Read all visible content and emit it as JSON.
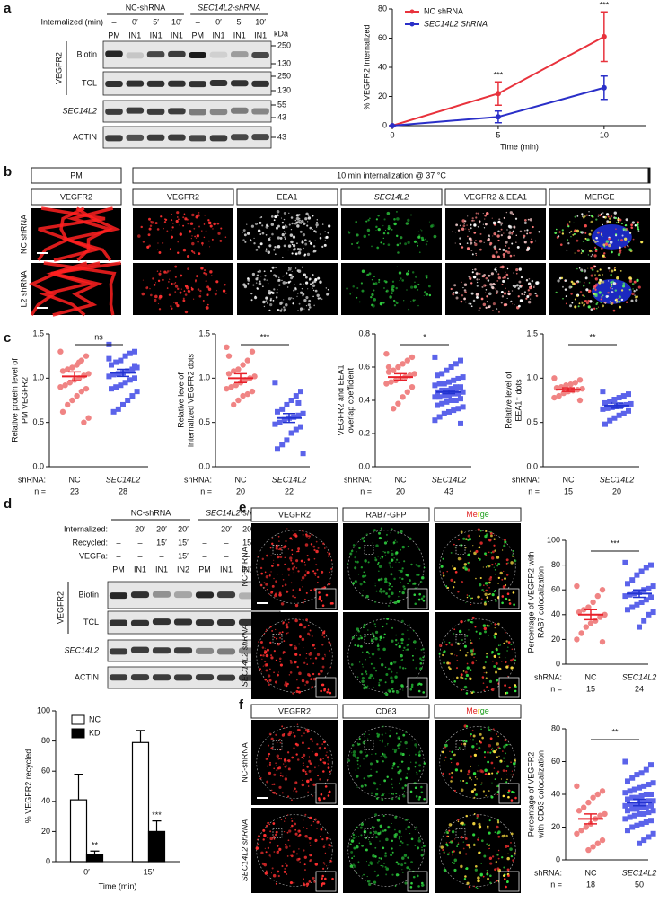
{
  "panel_letters": [
    "a",
    "b",
    "c",
    "d",
    "e",
    "f"
  ],
  "blot_a": {
    "groups": [
      "NC-shRNA",
      "SEC14L2-shRNA"
    ],
    "conditions": [
      {
        "label": "Internalized (min)",
        "values": [
          "–",
          "0′",
          "5′",
          "10′",
          "–",
          "0′",
          "5′",
          "10′"
        ]
      }
    ],
    "lanes": [
      "PM",
      "IN1",
      "IN1",
      "IN1",
      "PM",
      "IN1",
      "IN1",
      "IN1"
    ],
    "group_label": "VEGFR2",
    "unit": "kDa",
    "rows": [
      {
        "label": "Biotin",
        "markers": [
          "250",
          "130"
        ]
      },
      {
        "label": "TCL",
        "markers": [
          "250",
          "130"
        ]
      },
      {
        "label": "SEC14L2",
        "markers": [
          "55",
          "43"
        ]
      },
      {
        "label": "ACTIN",
        "markers": [
          "43"
        ]
      }
    ]
  },
  "panel_b": {
    "pm_header": "PM",
    "internalization_header": "10 min internalization @ 37 °C",
    "columns": [
      "VEGFR2",
      "VEGFR2",
      "EEA1",
      "SEC14L2",
      "VEGFR2 & EEA1",
      "MERGE"
    ],
    "rows": [
      "NC shRNA",
      "L2 shRNA"
    ]
  },
  "blot_d": {
    "groups": [
      "NC-shRNA",
      "SEC14L2-shRNA"
    ],
    "conditions": [
      {
        "label": "Internalized:",
        "values": [
          "–",
          "20′",
          "20′",
          "20′",
          "–",
          "20′",
          "20′",
          "20′"
        ]
      },
      {
        "label": "Recycled:",
        "values": [
          "–",
          "–",
          "15′",
          "15′",
          "–",
          "–",
          "15′",
          "15′"
        ]
      },
      {
        "label": "VEGFa:",
        "values": [
          "–",
          "–",
          "–",
          "15′",
          "–",
          "–",
          "–",
          "15′"
        ]
      }
    ],
    "lanes": [
      "PM",
      "IN1",
      "IN1",
      "IN2",
      "PM",
      "IN1",
      "IN1",
      "IN2"
    ],
    "group_label": "VEGFR2",
    "unit": "kDa",
    "rows": [
      {
        "label": "Biotin",
        "markers": [
          "250",
          "130"
        ]
      },
      {
        "label": "TCL",
        "markers": [
          "250",
          "130"
        ]
      },
      {
        "label": "SEC14L2",
        "markers": [
          "55",
          "43"
        ]
      },
      {
        "label": "ACTIN",
        "markers": [
          "43"
        ]
      }
    ]
  },
  "panel_e": {
    "columns": [
      "VEGFR2",
      "RAB7-GFP",
      "Merge"
    ],
    "rows": [
      "NC-shRNA",
      "SEC14L2 shRNA"
    ]
  },
  "panel_f": {
    "columns": [
      "VEGFR2",
      "CD63",
      "Merge"
    ],
    "rows": [
      "NC-shRNA",
      "SEC14L2 shRNA"
    ]
  },
  "chart_data": [
    {
      "type": "line",
      "x": [
        0,
        5,
        10
      ],
      "xlim": [
        0,
        12
      ],
      "xticks": [
        0,
        5,
        10
      ],
      "ylim": [
        0,
        80
      ],
      "yticks": [
        0,
        20,
        40,
        60,
        80
      ],
      "xlabel": "Time (min)",
      "ylabel": "% VEGFR2 internalized",
      "series": [
        {
          "name": "NC shRNA",
          "color": "#e8323c",
          "values": [
            0,
            22,
            61
          ],
          "errors": [
            0,
            8,
            17
          ]
        },
        {
          "name": "SEC14L2 ShRNA",
          "color": "#2a2fc8",
          "values": [
            0,
            6,
            26
          ],
          "errors": [
            0,
            4,
            8
          ]
        }
      ],
      "annotations": [
        {
          "x": 5,
          "text": "***"
        },
        {
          "x": 10,
          "text": "***"
        }
      ]
    },
    {
      "type": "strip",
      "ylabel": [
        "Relative protein level of",
        "PM VEGFR2"
      ],
      "xlabel": "shRNA:",
      "n_label": "n =",
      "categories": [
        "NC",
        "SEC14L2"
      ],
      "n": [
        23,
        28
      ],
      "ylim": [
        0,
        1.5
      ],
      "yticks": [
        {
          "value": 0,
          "label": "0.0"
        },
        0.5,
        {
          "value": 1,
          "label": "1.0"
        },
        1.5
      ],
      "significance": "ns",
      "groups": [
        {
          "color": "#f08484",
          "mean_color": "#e8202a",
          "values": [
            1.3,
            1.25,
            1.2,
            1.15,
            1.12,
            1.1,
            1.08,
            1.05,
            1.03,
            1.0,
            0.98,
            0.95,
            0.92,
            0.9,
            0.88,
            0.85,
            0.8,
            0.75,
            0.7,
            0.62,
            0.55,
            0.5,
            1.18
          ],
          "mean": 1.02,
          "error": 0.05
        },
        {
          "color": "#5b63ea",
          "mean_color": "#2233d0",
          "values": [
            1.38,
            1.3,
            1.28,
            1.25,
            1.2,
            1.18,
            1.15,
            1.12,
            1.1,
            1.08,
            1.06,
            1.05,
            1.04,
            1.02,
            1.0,
            0.98,
            0.95,
            0.92,
            0.9,
            0.88,
            0.85,
            0.8,
            0.75,
            0.7,
            0.65,
            0.62,
            1.22,
            1.14
          ],
          "mean": 1.06,
          "error": 0.04
        }
      ]
    },
    {
      "type": "strip",
      "ylabel": [
        "Relative leve of",
        "internalized VEGFR2 dots"
      ],
      "xlabel": "shRNA:",
      "n_label": "n =",
      "categories": [
        "NC",
        "SEC14L2"
      ],
      "n": [
        20,
        22
      ],
      "ylim": [
        0,
        1.5
      ],
      "yticks": [
        {
          "value": 0,
          "label": "0.0"
        },
        0.5,
        {
          "value": 1,
          "label": "1.0"
        },
        1.5
      ],
      "significance": "***",
      "groups": [
        {
          "color": "#f08484",
          "mean_color": "#e8202a",
          "values": [
            1.35,
            1.3,
            1.2,
            1.15,
            1.1,
            1.08,
            1.05,
            1.02,
            1.0,
            0.98,
            0.95,
            0.92,
            0.9,
            0.88,
            0.85,
            0.82,
            0.8,
            0.75,
            0.7,
            1.25
          ],
          "mean": 1.0,
          "error": 0.05
        },
        {
          "color": "#5b63ea",
          "mean_color": "#2233d0",
          "values": [
            0.95,
            0.85,
            0.8,
            0.75,
            0.7,
            0.65,
            0.62,
            0.6,
            0.58,
            0.56,
            0.55,
            0.53,
            0.5,
            0.48,
            0.45,
            0.42,
            0.38,
            0.3,
            0.25,
            0.2,
            0.15,
            0.72
          ],
          "mean": 0.55,
          "error": 0.05
        }
      ]
    },
    {
      "type": "strip",
      "ylabel": [
        "VEGFR2 and EEA1",
        "overlap coefficient"
      ],
      "xlabel": "shRNA:",
      "n_label": "n =",
      "categories": [
        "NC",
        "SEC14L2"
      ],
      "n": [
        20,
        43
      ],
      "ylim": [
        0,
        0.8
      ],
      "yticks": [
        {
          "value": 0,
          "label": "0.0"
        },
        0.2,
        0.4,
        0.6,
        0.8
      ],
      "significance": "*",
      "groups": [
        {
          "color": "#f08484",
          "mean_color": "#e8202a",
          "values": [
            0.68,
            0.66,
            0.64,
            0.62,
            0.6,
            0.58,
            0.57,
            0.56,
            0.55,
            0.54,
            0.53,
            0.52,
            0.51,
            0.5,
            0.48,
            0.45,
            0.42,
            0.38,
            0.35,
            0.6
          ],
          "mean": 0.54,
          "error": 0.02
        },
        {
          "color": "#5b63ea",
          "mean_color": "#2233d0",
          "values": [
            0.66,
            0.64,
            0.62,
            0.6,
            0.58,
            0.56,
            0.55,
            0.54,
            0.53,
            0.52,
            0.51,
            0.5,
            0.5,
            0.49,
            0.48,
            0.48,
            0.47,
            0.46,
            0.46,
            0.45,
            0.45,
            0.44,
            0.44,
            0.43,
            0.43,
            0.42,
            0.42,
            0.41,
            0.4,
            0.4,
            0.39,
            0.38,
            0.37,
            0.36,
            0.35,
            0.34,
            0.33,
            0.32,
            0.3,
            0.28,
            0.26,
            0.47,
            0.44
          ],
          "mean": 0.45,
          "error": 0.01
        }
      ]
    },
    {
      "type": "strip",
      "ylabel": [
        "Relative level of",
        "EEA1⁺ dots"
      ],
      "xlabel": "shRNA:",
      "n_label": "n =",
      "categories": [
        "NC",
        "SEC14L2"
      ],
      "n": [
        15,
        20
      ],
      "ylim": [
        0,
        1.5
      ],
      "yticks": [
        {
          "value": 0,
          "label": "0.0"
        },
        0.5,
        {
          "value": 1,
          "label": "1.0"
        },
        1.5
      ],
      "significance": "**",
      "groups": [
        {
          "color": "#f08484",
          "mean_color": "#e8202a",
          "values": [
            1.0,
            0.98,
            0.95,
            0.93,
            0.92,
            0.9,
            0.89,
            0.88,
            0.87,
            0.86,
            0.85,
            0.83,
            0.8,
            0.78,
            0.75
          ],
          "mean": 0.87,
          "error": 0.02
        },
        {
          "color": "#5b63ea",
          "mean_color": "#2233d0",
          "values": [
            0.85,
            0.82,
            0.8,
            0.78,
            0.76,
            0.74,
            0.72,
            0.71,
            0.7,
            0.69,
            0.68,
            0.67,
            0.66,
            0.65,
            0.63,
            0.6,
            0.58,
            0.55,
            0.52,
            0.48
          ],
          "mean": 0.69,
          "error": 0.03
        }
      ]
    },
    {
      "type": "bar",
      "categories": [
        "0′",
        "15′"
      ],
      "xlabel": "Time (min)",
      "ylabel": "% VEGFR2 recycled",
      "ylim": [
        0,
        100
      ],
      "yticks": [
        0,
        20,
        40,
        60,
        80,
        100
      ],
      "series": [
        {
          "name": "NC",
          "color": "#ffffff",
          "values": [
            41,
            79
          ],
          "errors": [
            17,
            8
          ]
        },
        {
          "name": "KD",
          "color": "#000000",
          "values": [
            5,
            20
          ],
          "errors": [
            2,
            7
          ],
          "significance": [
            "**",
            "***"
          ]
        }
      ]
    },
    {
      "type": "strip",
      "ylabel": [
        "Percentage of VEGFR2 with",
        "RAB7 colocalization"
      ],
      "xlabel": "shRNA:",
      "n_label": "n =",
      "categories": [
        "NC",
        "SEC14L2"
      ],
      "n": [
        15,
        24
      ],
      "ylim": [
        0,
        100
      ],
      "yticks": [
        0,
        20,
        40,
        60,
        80,
        100
      ],
      "significance": "***",
      "groups": [
        {
          "color": "#f08484",
          "mean_color": "#e8202a",
          "values": [
            63,
            60,
            55,
            50,
            46,
            44,
            42,
            40,
            38,
            35,
            33,
            30,
            25,
            20,
            18
          ],
          "mean": 40,
          "error": 4
        },
        {
          "color": "#5b63ea",
          "mean_color": "#2233d0",
          "values": [
            82,
            80,
            78,
            75,
            72,
            68,
            65,
            63,
            61,
            60,
            58,
            57,
            56,
            55,
            54,
            52,
            50,
            48,
            46,
            44,
            42,
            40,
            35,
            30
          ],
          "mean": 57,
          "error": 3
        }
      ]
    },
    {
      "type": "strip",
      "ylabel": [
        "Percentage of VEGFR2",
        "with CD63 colocalization"
      ],
      "xlabel": "shRNA:",
      "n_label": "n =",
      "categories": [
        "NC",
        "SEC14L2"
      ],
      "n": [
        18,
        50
      ],
      "ylim": [
        0,
        80
      ],
      "yticks": [
        0,
        20,
        40,
        60,
        80
      ],
      "significance": "**",
      "groups": [
        {
          "color": "#f08484",
          "mean_color": "#e8202a",
          "values": [
            45,
            42,
            40,
            38,
            35,
            32,
            30,
            28,
            27,
            25,
            22,
            20,
            18,
            16,
            12,
            10,
            8,
            6
          ],
          "mean": 25,
          "error": 3
        },
        {
          "color": "#5b63ea",
          "mean_color": "#2233d0",
          "values": [
            60,
            58,
            55,
            53,
            52,
            50,
            48,
            47,
            46,
            45,
            44,
            43,
            42,
            41,
            40,
            40,
            39,
            38,
            38,
            37,
            36,
            36,
            35,
            35,
            34,
            34,
            33,
            33,
            32,
            32,
            31,
            31,
            30,
            30,
            29,
            28,
            28,
            27,
            26,
            25,
            24,
            23,
            22,
            21,
            20,
            18,
            16,
            14,
            12,
            10
          ],
          "mean": 35,
          "error": 2
        }
      ]
    }
  ]
}
